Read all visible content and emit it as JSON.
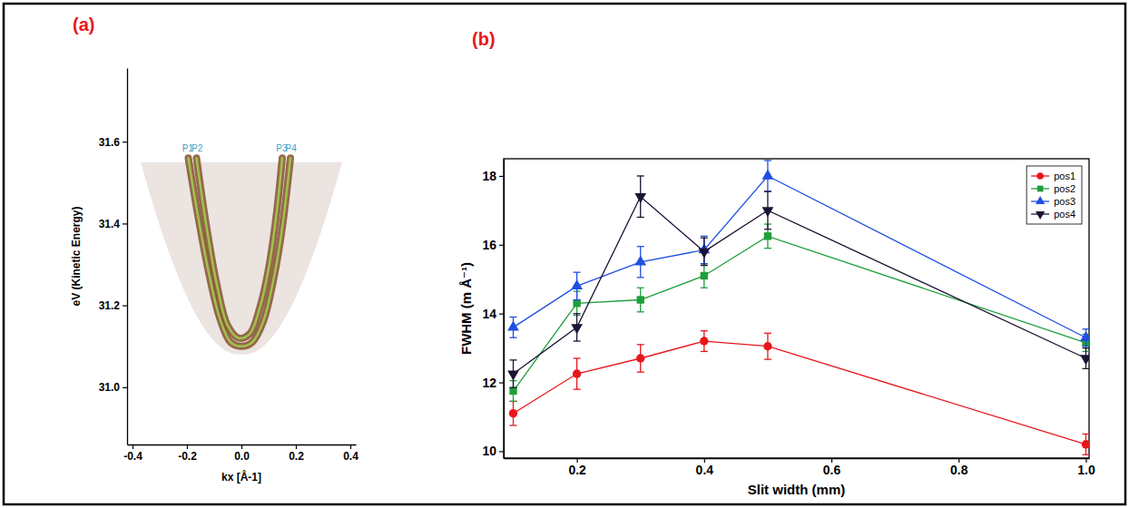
{
  "chart_data": [
    {
      "type": "line",
      "panel_label": "(a)",
      "x_label": "kx [Å-1]",
      "y_label": "eV (Kinetic Energy)",
      "xlim": [
        -0.42,
        0.42
      ],
      "xticks": [
        -0.4,
        -0.2,
        {
          "value": 0,
          "label": "0.0"
        },
        0.2,
        0.4
      ],
      "ylim": [
        30.86,
        31.78
      ],
      "yticks": [
        {
          "value": 31,
          "label": "31.0"
        },
        31.2,
        31.4,
        31.6
      ],
      "series": [
        {
          "color": "#8b5a3c",
          "x": [
            -0.195,
            -0.16,
            -0.12,
            -0.08,
            -0.04,
            0.0,
            0.04,
            0.08,
            0.12,
            0.15,
            0.18
          ],
          "values": [
            31.56,
            31.42,
            31.28,
            31.17,
            31.11,
            31.1,
            31.11,
            31.16,
            31.27,
            31.39,
            31.56
          ]
        },
        {
          "color": "#8b5a3c",
          "x": [
            -0.165,
            -0.13,
            -0.09,
            -0.05,
            -0.01,
            0.03,
            0.07,
            0.1,
            0.13,
            0.15
          ],
          "values": [
            31.56,
            31.4,
            31.25,
            31.15,
            31.12,
            31.13,
            31.2,
            31.29,
            31.43,
            31.56
          ]
        }
      ],
      "annotations": [
        {
          "text": "P1",
          "x": -0.197,
          "y": 31.575,
          "color": "#3a9fc8"
        },
        {
          "text": "P2",
          "x": -0.163,
          "y": 31.575,
          "color": "#3a9fc8"
        },
        {
          "text": "P3",
          "x": 0.148,
          "y": 31.575,
          "color": "#3a9fc8"
        },
        {
          "text": "P4",
          "x": 0.182,
          "y": 31.575,
          "color": "#3a9fc8"
        }
      ]
    },
    {
      "type": "line",
      "panel_label": "(b)",
      "x_label": "Slit width (mm)",
      "y_label": "FWHM (m Å⁻¹)",
      "xlim": [
        0.085,
        1.005
      ],
      "xticks": [
        0.2,
        0.4,
        0.6,
        0.8,
        {
          "value": 1,
          "label": "1.0"
        }
      ],
      "ylim": [
        9.8,
        18.5
      ],
      "yticks": [
        10,
        12,
        14,
        16,
        18
      ],
      "legend": "upper right",
      "x": [
        0.1,
        0.2,
        0.3,
        0.4,
        0.5,
        1.0
      ],
      "series": [
        {
          "name": "pos1",
          "color": "#e8161c",
          "marker": "circle",
          "values": [
            11.1,
            12.25,
            12.7,
            13.2,
            13.05,
            10.2
          ],
          "errors": [
            0.35,
            0.45,
            0.4,
            0.3,
            0.38,
            0.3
          ]
        },
        {
          "name": "pos2",
          "color": "#1f9e3a",
          "marker": "square",
          "values": [
            11.75,
            14.3,
            14.4,
            15.1,
            16.25,
            13.15
          ],
          "errors": [
            0.3,
            0.35,
            0.35,
            0.35,
            0.35,
            0.25
          ]
        },
        {
          "name": "pos3",
          "color": "#1f4fe0",
          "marker": "triangle-up",
          "values": [
            13.6,
            14.8,
            15.5,
            15.85,
            18.0,
            13.3
          ],
          "errors": [
            0.3,
            0.4,
            0.45,
            0.4,
            0.45,
            0.25
          ]
        },
        {
          "name": "pos4",
          "color": "#1c1233",
          "marker": "triangle-down",
          "values": [
            12.25,
            13.6,
            17.4,
            15.8,
            17.0,
            12.7
          ],
          "errors": [
            0.4,
            0.4,
            0.6,
            0.4,
            0.55,
            0.3
          ]
        }
      ]
    }
  ]
}
